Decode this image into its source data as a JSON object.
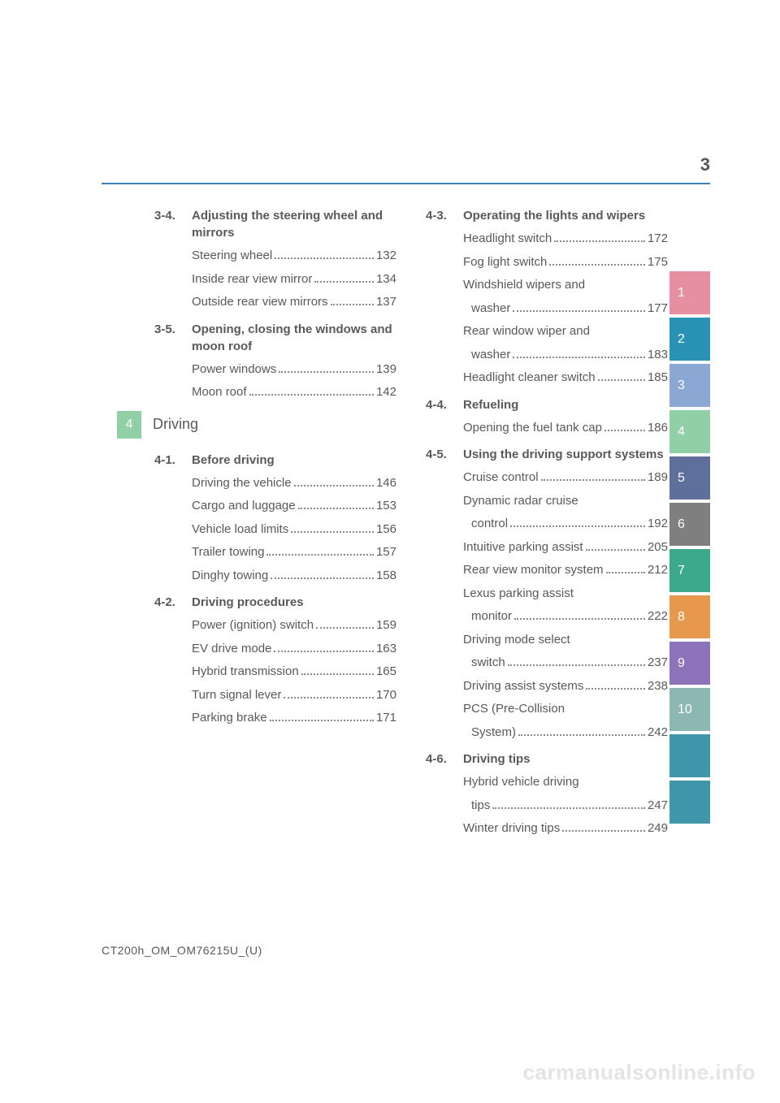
{
  "page_number": "3",
  "footer": "CT200h_OM_OM76215U_(U)",
  "watermark": "carmanualsonline.info",
  "colors": {
    "rule": "#3b7fbd",
    "text": "#595959",
    "dots": "#8a8a8a",
    "tabs": [
      "#e68fa0",
      "#2a93b5",
      "#8ba7d4",
      "#91cfa7",
      "#5d6f9a",
      "#7f7f7f",
      "#3aa98c",
      "#e6994d",
      "#8d73ba",
      "#8cb7b3",
      "#4097a9",
      "#4097a9"
    ],
    "chapter_tab": "#91cfa7"
  },
  "chapter": {
    "number": "4",
    "title": "Driving"
  },
  "side_tabs": [
    "1",
    "2",
    "3",
    "4",
    "5",
    "6",
    "7",
    "8",
    "9",
    "10",
    "",
    ""
  ],
  "left": [
    {
      "num": "3-4.",
      "title": "Adjusting the steering wheel and mirrors",
      "items": [
        {
          "label": "Steering wheel",
          "page": "132"
        },
        {
          "label": "Inside rear view mirror",
          "page": "134"
        },
        {
          "label": "Outside rear view mirrors",
          "page": "137"
        }
      ]
    },
    {
      "num": "3-5.",
      "title": "Opening, closing the windows and moon roof",
      "items": [
        {
          "label": "Power windows",
          "page": "139"
        },
        {
          "label": "Moon roof",
          "page": "142"
        }
      ]
    },
    {
      "chapter_bar": true
    },
    {
      "num": "4-1.",
      "title": "Before driving",
      "items": [
        {
          "label": "Driving the vehicle",
          "page": "146"
        },
        {
          "label": "Cargo and luggage",
          "page": "153"
        },
        {
          "label": "Vehicle load limits",
          "page": "156"
        },
        {
          "label": "Trailer towing",
          "page": "157"
        },
        {
          "label": "Dinghy towing",
          "page": "158"
        }
      ]
    },
    {
      "num": "4-2.",
      "title": "Driving procedures",
      "items": [
        {
          "label": "Power (ignition) switch",
          "page": "159"
        },
        {
          "label": "EV drive mode",
          "page": "163"
        },
        {
          "label": "Hybrid transmission",
          "page": "165"
        },
        {
          "label": "Turn signal lever",
          "page": "170"
        },
        {
          "label": "Parking brake",
          "page": "171"
        }
      ]
    }
  ],
  "right": [
    {
      "num": "4-3.",
      "title": "Operating the lights and wipers",
      "items": [
        {
          "label": "Headlight switch",
          "page": "172"
        },
        {
          "label": "Fog light switch",
          "page": "175"
        },
        {
          "label": "Windshield wipers and",
          "sub": "washer",
          "page": "177"
        },
        {
          "label": "Rear window wiper and",
          "sub": "washer",
          "page": "183"
        },
        {
          "label": "Headlight cleaner switch",
          "page": "185"
        }
      ]
    },
    {
      "num": "4-4.",
      "title": "Refueling",
      "items": [
        {
          "label": "Opening the fuel tank cap",
          "page": "186"
        }
      ]
    },
    {
      "num": "4-5.",
      "title": "Using the driving support systems",
      "items": [
        {
          "label": "Cruise control",
          "page": "189"
        },
        {
          "label": "Dynamic radar cruise",
          "sub": "control",
          "page": "192"
        },
        {
          "label": "Intuitive parking assist",
          "page": "205"
        },
        {
          "label": "Rear view monitor system",
          "page": "212"
        },
        {
          "label": "Lexus parking assist",
          "sub": "monitor",
          "page": "222"
        },
        {
          "label": "Driving mode select",
          "sub": "switch",
          "page": "237"
        },
        {
          "label": "Driving assist systems",
          "page": "238"
        },
        {
          "label": "PCS (Pre-Collision",
          "sub": "System)",
          "page": "242"
        }
      ]
    },
    {
      "num": "4-6.",
      "title": "Driving tips",
      "items": [
        {
          "label": "Hybrid vehicle driving",
          "sub": "tips",
          "page": "247"
        },
        {
          "label": "Winter driving tips",
          "page": "249"
        }
      ]
    }
  ]
}
